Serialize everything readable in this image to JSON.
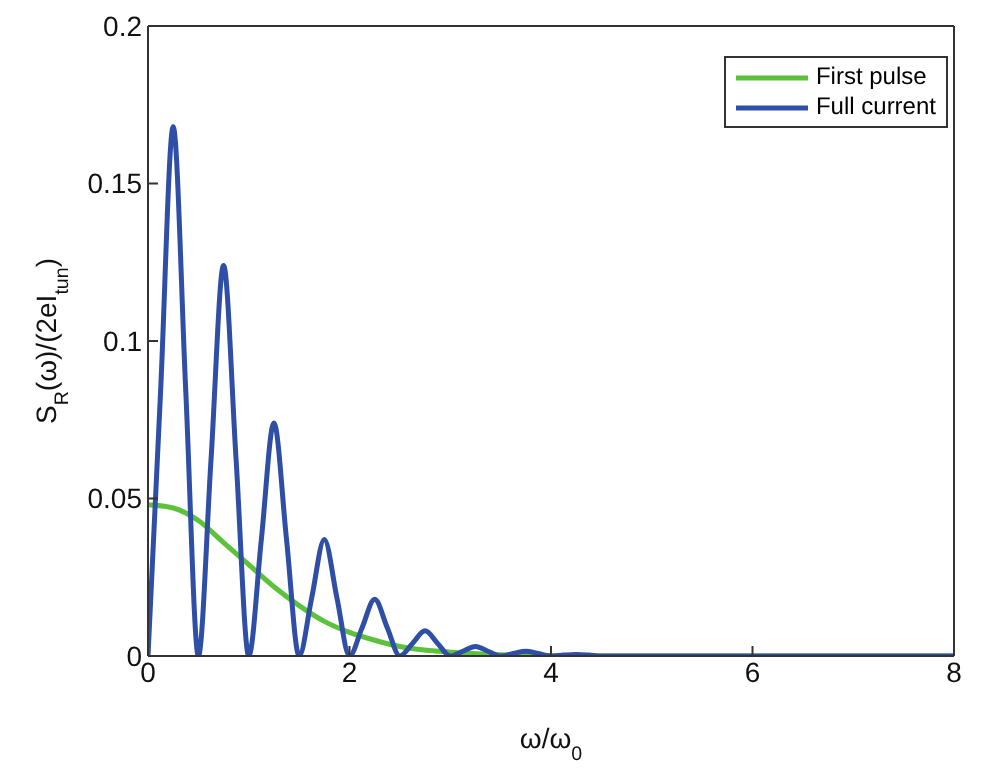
{
  "chart_data": {
    "type": "line",
    "xlabel": "ω/ω$_{0}$",
    "ylabel": "S$_{R}$(ω)/(2eI$_{tun}$)",
    "xlim": [
      0,
      8
    ],
    "xticks": [
      0,
      2,
      4,
      6,
      8
    ],
    "ylim": [
      0,
      0.2
    ],
    "yticks": [
      0,
      0.05,
      0.1,
      0.15,
      0.2
    ],
    "grid": false,
    "legend": "top right",
    "marker": "none",
    "line_style": "solid",
    "series": [
      {
        "name": "First pulse",
        "color": "#5cc23c",
        "x": [
          0,
          0.25,
          0.5,
          0.75,
          1,
          1.25,
          1.5,
          1.75,
          2,
          2.25,
          2.5,
          3,
          3.5,
          4,
          5,
          8
        ],
        "values": [
          0.048,
          0.047,
          0.043,
          0.036,
          0.029,
          0.022,
          0.016,
          0.011,
          0.0075,
          0.005,
          0.003,
          0.0012,
          0.0004,
          0.0001,
          0,
          0
        ]
      },
      {
        "name": "Full current",
        "color": "#2f4ea6",
        "x": [
          0,
          0.125,
          0.25,
          0.375,
          0.5,
          0.625,
          0.75,
          0.875,
          1,
          1.125,
          1.25,
          1.375,
          1.5,
          1.625,
          1.75,
          1.875,
          2,
          2.125,
          2.25,
          2.375,
          2.5,
          2.625,
          2.75,
          2.875,
          3,
          3.125,
          3.25,
          3.375,
          3.5,
          3.625,
          3.75,
          3.875,
          4,
          4.125,
          4.25,
          4.375,
          4.5,
          5,
          6,
          7,
          8
        ],
        "values": [
          0,
          0.084,
          0.168,
          0.084,
          0,
          0.062,
          0.124,
          0.062,
          0,
          0.037,
          0.074,
          0.037,
          0,
          0.0185,
          0.037,
          0.0185,
          0,
          0.009,
          0.018,
          0.009,
          0,
          0.004,
          0.008,
          0.004,
          0,
          0.0015,
          0.003,
          0.0015,
          0,
          0.0008,
          0.0015,
          0.0008,
          0,
          0.0003,
          0.0005,
          0.0003,
          0,
          0,
          0,
          0,
          0
        ]
      }
    ]
  }
}
